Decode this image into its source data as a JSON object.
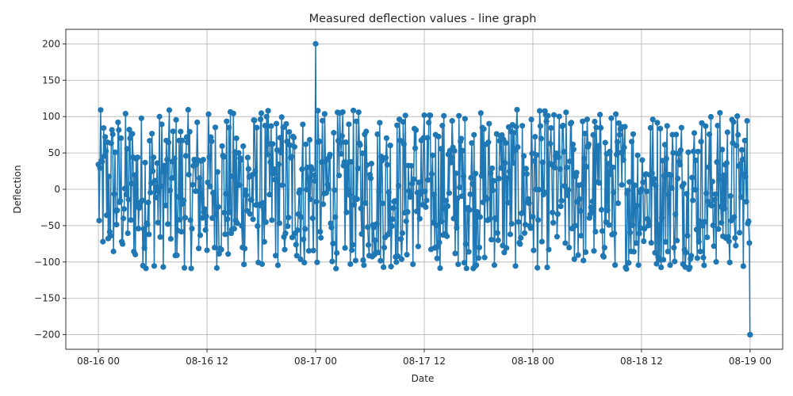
{
  "chart_data": {
    "type": "line",
    "title": "Measured deflection values - line graph",
    "xlabel": "Date",
    "ylabel": "Deflection",
    "x_tick_labels": [
      "08-16 00",
      "08-16 12",
      "08-17 00",
      "08-17 12",
      "08-18 00",
      "08-18 12",
      "08-19 00"
    ],
    "x_tick_hours": [
      0,
      12,
      24,
      36,
      48,
      60,
      72
    ],
    "y_ticks": [
      -200,
      -150,
      -100,
      -50,
      0,
      50,
      100,
      150,
      200
    ],
    "xlim_hours": [
      -3.6,
      75.6
    ],
    "ylim": [
      -220,
      220
    ],
    "grid": true,
    "series": [
      {
        "color": "#1f77b4",
        "marker": "circle",
        "x_start": "08-16 00",
        "x_end": "08-19 00",
        "sampling_interval_minutes": 5,
        "value_range": [
          -110,
          110
        ],
        "pattern": "dense oscillating noise between about -110 and 110",
        "spikes": [
          {
            "x": "08-17 00",
            "y": 200
          },
          {
            "x": "08-19 00",
            "y": -200
          }
        ]
      }
    ]
  }
}
